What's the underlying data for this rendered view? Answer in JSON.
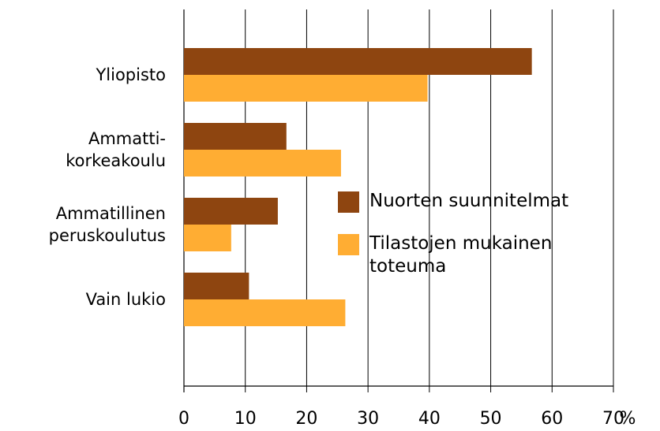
{
  "chart_data": {
    "type": "barh",
    "categories": [
      "Yliopisto",
      "Ammatti-\nkorkeakoulu",
      "Ammatillinen\nperuskoulutus",
      "Vain lukio"
    ],
    "series": [
      {
        "name": "Nuorten suunnitelmat",
        "color": "#8e4510",
        "values": [
          56.7,
          16.7,
          15.3,
          10.6
        ]
      },
      {
        "name": "Tilastojen mukainen\ntoteuma",
        "color": "#ffad33",
        "values": [
          39.7,
          25.6,
          7.7,
          26.3
        ]
      }
    ],
    "xlim": [
      0,
      70
    ],
    "xticks": [
      0,
      10,
      20,
      30,
      40,
      50,
      60,
      70
    ],
    "xlabel": "%",
    "grid": true
  }
}
